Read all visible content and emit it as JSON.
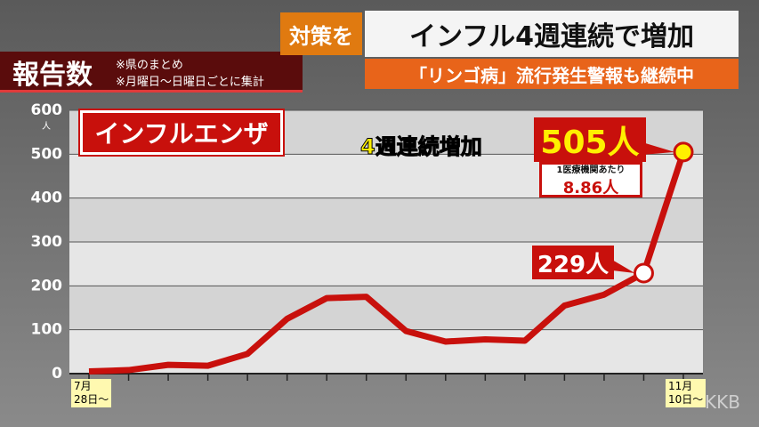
{
  "header": {
    "tag": "対策を",
    "headline": "インフル4週連続で増加",
    "section": "報告数",
    "note1": "※県のまとめ",
    "note2": "※月曜日〜日曜日ごとに集計",
    "subheadline": "「リンゴ病」流行発生警報も継続中",
    "watermark": "KKB"
  },
  "chart_data": {
    "type": "line",
    "title": "インフルエンザ",
    "y_label": "人",
    "categories": [
      "7月\n28日〜",
      null,
      null,
      null,
      null,
      null,
      null,
      null,
      null,
      null,
      null,
      null,
      null,
      null,
      null,
      "11月\n10日〜"
    ],
    "series": [
      {
        "name": "インフルエンザ",
        "color": "#c8100c",
        "values": [
          5,
          8,
          20,
          18,
          45,
          125,
          172,
          175,
          97,
          73,
          78,
          75,
          155,
          180,
          229,
          505
        ],
        "value_labels": [
          null,
          null,
          null,
          null,
          null,
          null,
          null,
          null,
          null,
          null,
          null,
          null,
          null,
          null,
          "229人",
          "505人"
        ]
      }
    ],
    "ylim": [
      0,
      600
    ],
    "yticks": [
      0,
      100,
      200,
      300,
      400,
      500,
      600
    ],
    "grid": true,
    "annotations": [
      "4週連続増加",
      "1医療機関あたり",
      "8.86人"
    ]
  }
}
